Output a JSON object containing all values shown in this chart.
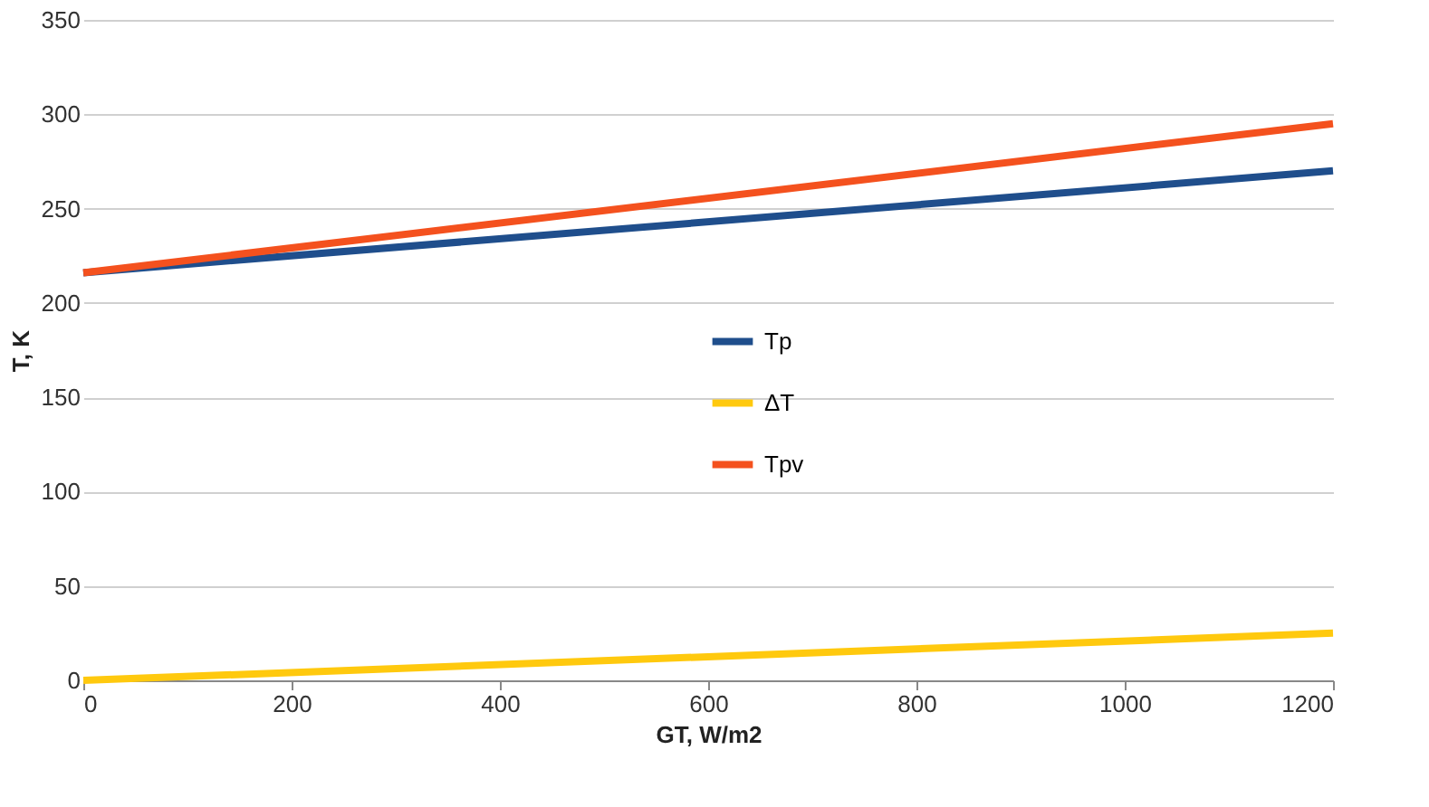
{
  "chart_data": {
    "type": "line",
    "xlabel": "GT, W/m2",
    "ylabel": "T, K",
    "x": [
      0,
      1200
    ],
    "series": [
      {
        "name": "Tp",
        "color": "#1f4e8c",
        "values": [
          216,
          270
        ]
      },
      {
        "name": "ΔT",
        "color": "#ffc90e",
        "values": [
          0,
          25
        ]
      },
      {
        "name": "Tpv",
        "color": "#f4511e",
        "values": [
          216,
          295
        ]
      }
    ],
    "xlim": [
      0,
      1200
    ],
    "xticks": [
      0,
      200,
      400,
      600,
      800,
      1000,
      1200
    ],
    "ylim": [
      0,
      350
    ],
    "yticks": [
      0,
      50,
      100,
      150,
      200,
      250,
      300,
      350
    ],
    "grid": "y",
    "legend": "center",
    "marker": "none",
    "line_style": "solid"
  }
}
